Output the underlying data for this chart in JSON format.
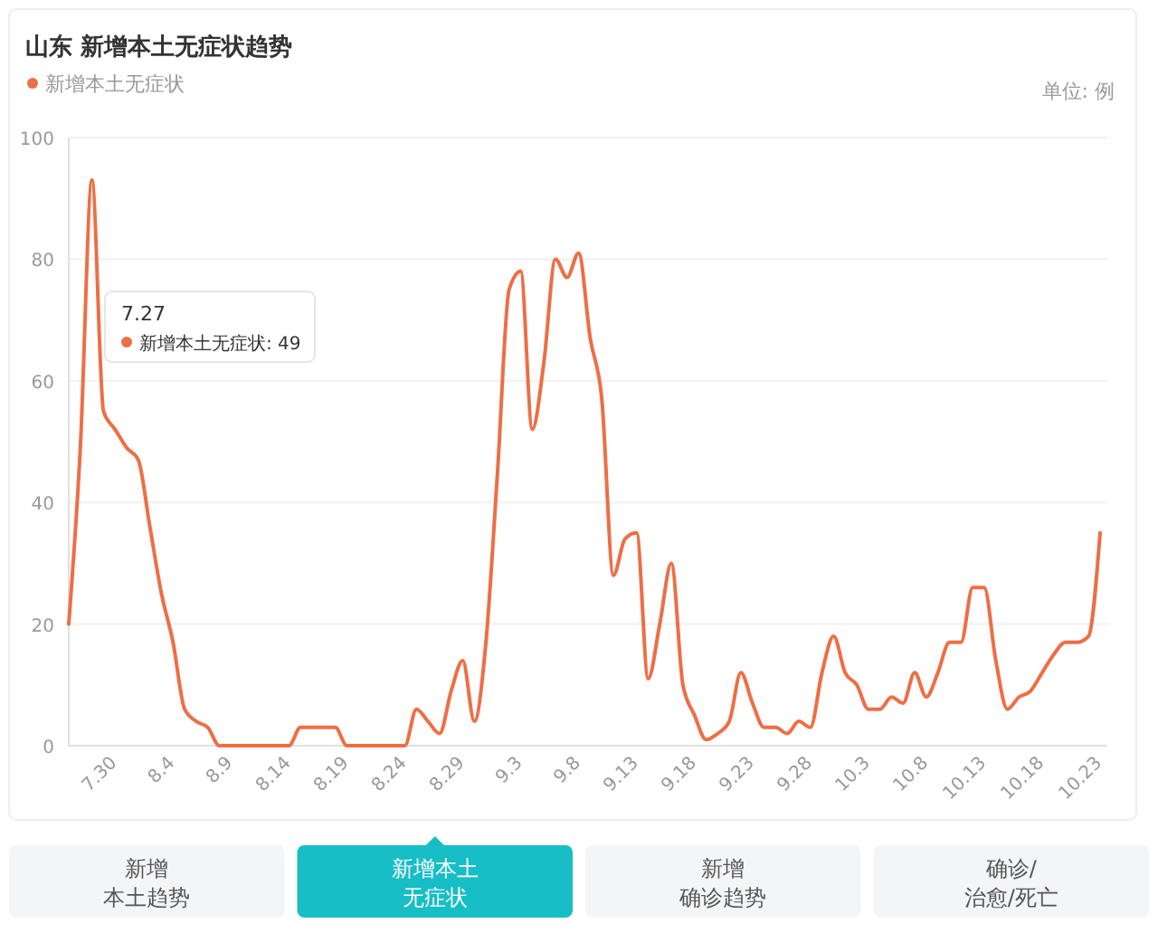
{
  "chart_data": {
    "type": "line",
    "title": "山东 新增本土无症状趋势",
    "categories": [
      null,
      null,
      null,
      null,
      "7.30",
      null,
      null,
      null,
      null,
      "8.4",
      null,
      null,
      null,
      null,
      "8.9",
      null,
      null,
      null,
      null,
      "8.14",
      null,
      null,
      null,
      null,
      "8.19",
      null,
      null,
      null,
      null,
      "8.24",
      null,
      null,
      null,
      null,
      "8.29",
      null,
      null,
      null,
      null,
      "9.3",
      null,
      null,
      null,
      null,
      "9.8",
      null,
      null,
      null,
      null,
      "9.13",
      null,
      null,
      null,
      null,
      "9.18",
      null,
      null,
      null,
      null,
      "9.23",
      null,
      null,
      null,
      null,
      "9.28",
      null,
      null,
      null,
      null,
      "10.3",
      null,
      null,
      null,
      null,
      "10.8",
      null,
      null,
      null,
      null,
      "10.13",
      null,
      null,
      null,
      null,
      "10.18",
      null,
      null,
      null,
      null,
      "10.23"
    ],
    "series": [
      {
        "name": "新增本土无症状",
        "color": "#ee6e45",
        "values": [
          20,
          49,
          93,
          55,
          52,
          49,
          47,
          36,
          25,
          17,
          6,
          4,
          3,
          0,
          0,
          0,
          0,
          0,
          0,
          0,
          3,
          3,
          3,
          3,
          0,
          0,
          0,
          0,
          0,
          0,
          6,
          4,
          2,
          9,
          14,
          4,
          17,
          45,
          75,
          78,
          52,
          63,
          80,
          77,
          81,
          67,
          57,
          28,
          34,
          35,
          11,
          20,
          30,
          10,
          5,
          1,
          2,
          4,
          12,
          7,
          3,
          3,
          2,
          4,
          3,
          12,
          18,
          12,
          10,
          6,
          6,
          8,
          7,
          12,
          8,
          12,
          17,
          17,
          26,
          26,
          14,
          6,
          8,
          9,
          12,
          15,
          17,
          17,
          18,
          35
        ]
      }
    ],
    "ylim": [
      0,
      100
    ],
    "yticks": [
      0,
      20,
      40,
      60,
      80,
      100
    ],
    "grid": "y",
    "legend": "top left",
    "line_style": "solid",
    "annotations": [
      "单位: 例",
      "7.27",
      "新增本土无症状: 49",
      "新增",
      "本土趋势",
      "新增本土",
      "无症状",
      "新增",
      "确诊趋势",
      "确诊/",
      "治愈/死亡"
    ]
  }
}
